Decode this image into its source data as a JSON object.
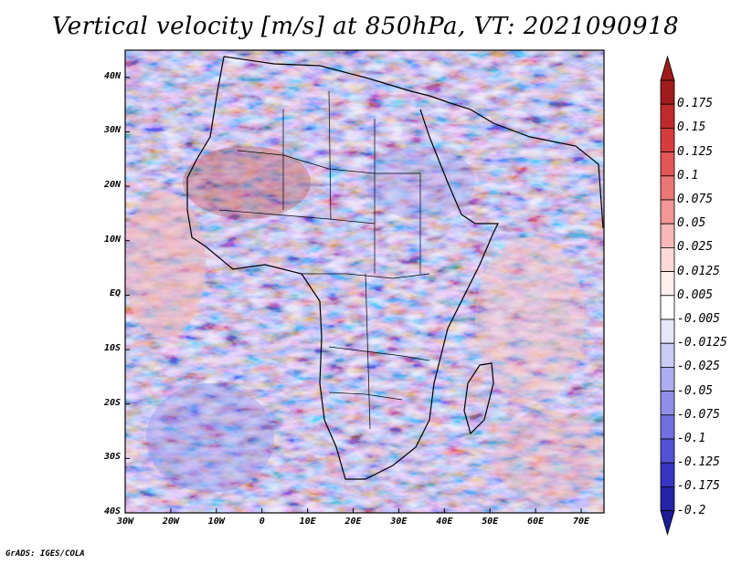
{
  "title": "Vertical velocity [m/s] at 850hPa, VT: 2021090918",
  "credit": "GrADS: IGES/COLA",
  "map": {
    "lon_range": [
      -30,
      75
    ],
    "lat_range": [
      -40,
      45
    ],
    "lat_ticks": [
      {
        "value": 40,
        "label": "40N"
      },
      {
        "value": 30,
        "label": "30N"
      },
      {
        "value": 20,
        "label": "20N"
      },
      {
        "value": 10,
        "label": "10N"
      },
      {
        "value": 0,
        "label": "EQ"
      },
      {
        "value": -10,
        "label": "10S"
      },
      {
        "value": -20,
        "label": "20S"
      },
      {
        "value": -30,
        "label": "30S"
      },
      {
        "value": -40,
        "label": "40S"
      }
    ],
    "lon_ticks": [
      {
        "value": -30,
        "label": "30W"
      },
      {
        "value": -20,
        "label": "20W"
      },
      {
        "value": -10,
        "label": "10W"
      },
      {
        "value": 0,
        "label": "0"
      },
      {
        "value": 10,
        "label": "10E"
      },
      {
        "value": 20,
        "label": "20E"
      },
      {
        "value": 30,
        "label": "30E"
      },
      {
        "value": 40,
        "label": "40E"
      },
      {
        "value": 50,
        "label": "50E"
      },
      {
        "value": 60,
        "label": "60E"
      },
      {
        "value": 70,
        "label": "70E"
      }
    ]
  },
  "colorbar": {
    "levels": [
      {
        "label": "0.175",
        "color": "#a01c1c"
      },
      {
        "label": "0.15",
        "color": "#c02a2a"
      },
      {
        "label": "0.125",
        "color": "#d63c3c"
      },
      {
        "label": "0.1",
        "color": "#e25656"
      },
      {
        "label": "0.075",
        "color": "#ec7676"
      },
      {
        "label": "0.05",
        "color": "#f39696"
      },
      {
        "label": "0.025",
        "color": "#f8b8b8"
      },
      {
        "label": "0.0125",
        "color": "#fcd8d8"
      },
      {
        "label": "0.005",
        "color": "#ffeeee"
      },
      {
        "label": "-0.005",
        "color": "#ffffff"
      },
      {
        "label": "-0.0125",
        "color": "#e6e6fb"
      },
      {
        "label": "-0.025",
        "color": "#cbcbf6"
      },
      {
        "label": "-0.05",
        "color": "#adadf0"
      },
      {
        "label": "-0.075",
        "color": "#8f8fe9"
      },
      {
        "label": "-0.1",
        "color": "#7070e0"
      },
      {
        "label": "-0.125",
        "color": "#5252d4"
      },
      {
        "label": "-0.175",
        "color": "#3636c2"
      },
      {
        "label": "-0.2",
        "color": "#2424a8"
      }
    ],
    "top_color": "#a01c1c",
    "bottom_color": "#1c1c96"
  }
}
